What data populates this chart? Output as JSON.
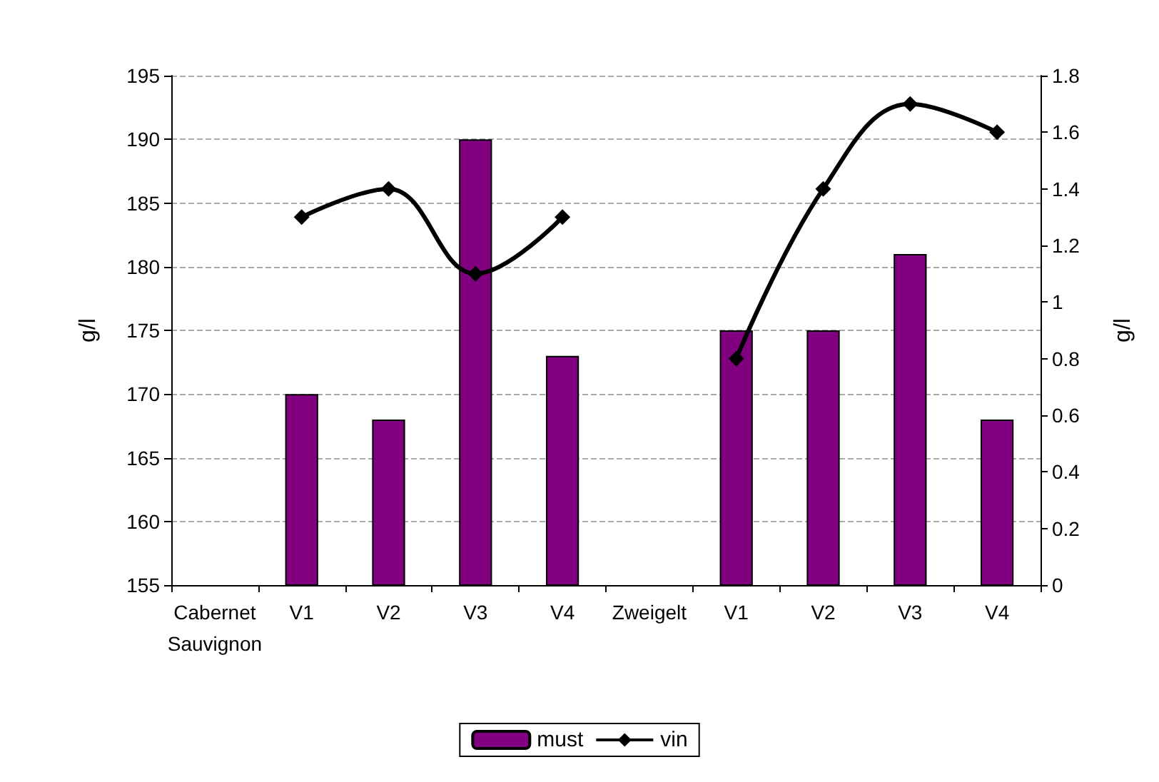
{
  "chart_data": {
    "type": "bar",
    "categories": [
      "Cabernet\nSauvignon",
      "V1",
      "V2",
      "V3",
      "V4",
      "Zweigelt",
      "V1",
      "V2",
      "V3",
      "V4"
    ],
    "series": [
      {
        "name": "must",
        "color": "#800080",
        "values": [
          null,
          170,
          168,
          190,
          173,
          null,
          175,
          175,
          181,
          168
        ]
      },
      {
        "name": "vin",
        "type": "line",
        "axis": "y2",
        "color": "#000000",
        "marker": "diamond",
        "values": [
          null,
          1.3,
          1.4,
          1.1,
          1.3,
          null,
          0.8,
          1.4,
          1.7,
          1.6
        ]
      }
    ],
    "ylabel": "g/l",
    "y2label": "g/l",
    "ylim": [
      155,
      195
    ],
    "yticks": [
      155,
      160,
      165,
      170,
      175,
      180,
      185,
      190,
      195
    ],
    "y2lim": [
      0,
      1.8
    ],
    "y2ticks": [
      0,
      0.2,
      0.4,
      0.6,
      0.8,
      1,
      1.2,
      1.4,
      1.6,
      1.8
    ],
    "grid": "y",
    "legend": "bottom"
  }
}
